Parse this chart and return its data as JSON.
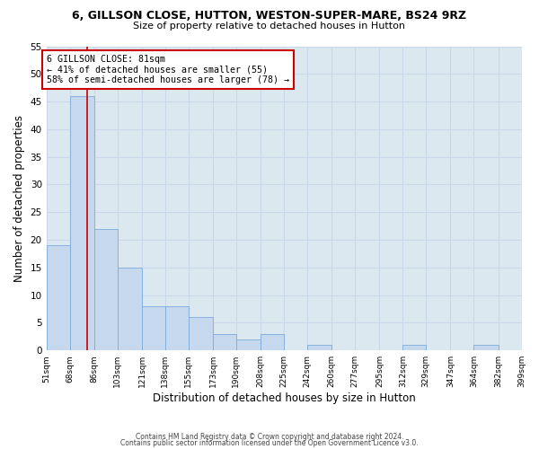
{
  "title1": "6, GILLSON CLOSE, HUTTON, WESTON-SUPER-MARE, BS24 9RZ",
  "title2": "Size of property relative to detached houses in Hutton",
  "xlabel": "Distribution of detached houses by size in Hutton",
  "ylabel": "Number of detached properties",
  "bin_edges": [
    51,
    68,
    86,
    103,
    121,
    138,
    155,
    173,
    190,
    208,
    225,
    242,
    260,
    277,
    295,
    312,
    329,
    347,
    364,
    382,
    399
  ],
  "bar_heights": [
    19,
    46,
    22,
    15,
    8,
    8,
    6,
    3,
    2,
    3,
    0,
    1,
    0,
    0,
    0,
    1,
    0,
    0,
    1,
    0
  ],
  "bar_color": "#c5d8ee",
  "bar_edge_color": "#7aabda",
  "x_tick_labels": [
    "51sqm",
    "68sqm",
    "86sqm",
    "103sqm",
    "121sqm",
    "138sqm",
    "155sqm",
    "173sqm",
    "190sqm",
    "208sqm",
    "225sqm",
    "242sqm",
    "260sqm",
    "277sqm",
    "295sqm",
    "312sqm",
    "329sqm",
    "347sqm",
    "364sqm",
    "382sqm",
    "399sqm"
  ],
  "ylim": [
    0,
    55
  ],
  "yticks": [
    0,
    5,
    10,
    15,
    20,
    25,
    30,
    35,
    40,
    45,
    50,
    55
  ],
  "vline_x": 81,
  "vline_color": "#cc0000",
  "annotation_title": "6 GILLSON CLOSE: 81sqm",
  "annotation_line1": "← 41% of detached houses are smaller (55)",
  "annotation_line2": "58% of semi-detached houses are larger (78) →",
  "grid_color": "#c8d8e8",
  "bg_color": "#dce8f0",
  "footer1": "Contains HM Land Registry data © Crown copyright and database right 2024.",
  "footer2": "Contains public sector information licensed under the Open Government Licence v3.0."
}
